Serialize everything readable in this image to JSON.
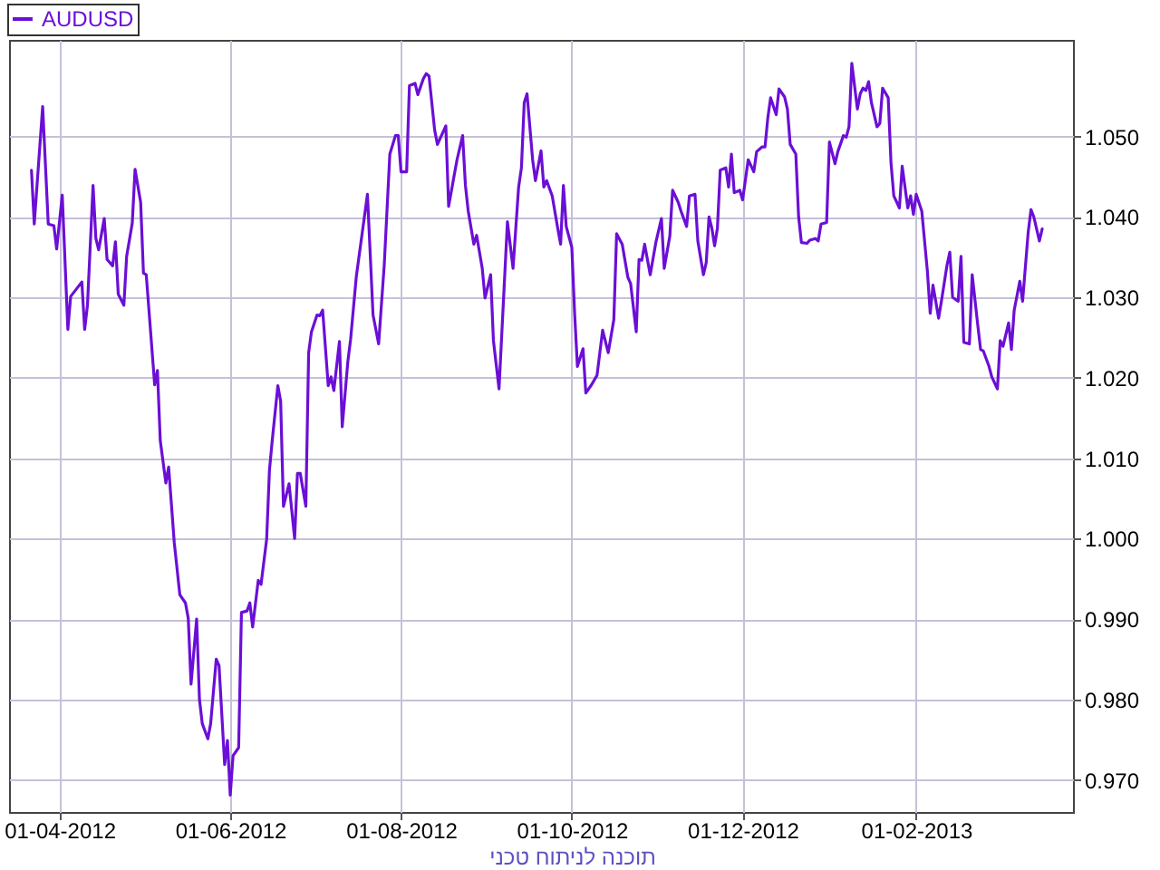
{
  "chart_data": {
    "type": "line",
    "x": [
      "2012-03-22",
      "2012-03-23",
      "2012-03-26",
      "2012-03-28",
      "2012-03-30",
      "2012-03-31",
      "2012-04-02",
      "2012-04-04",
      "2012-04-05",
      "2012-04-09",
      "2012-04-10",
      "2012-04-11",
      "2012-04-13",
      "2012-04-14",
      "2012-04-15",
      "2012-04-17",
      "2012-04-18",
      "2012-04-20",
      "2012-04-21",
      "2012-04-22",
      "2012-04-24",
      "2012-04-25",
      "2012-04-27",
      "2012-04-28",
      "2012-04-30",
      "2012-05-01",
      "2012-05-02",
      "2012-05-05",
      "2012-05-06",
      "2012-05-07",
      "2012-05-09",
      "2012-05-10",
      "2012-05-12",
      "2012-05-14",
      "2012-05-16",
      "2012-05-17",
      "2012-05-18",
      "2012-05-20",
      "2012-05-21",
      "2012-05-22",
      "2012-05-24",
      "2012-05-25",
      "2012-05-27",
      "2012-05-28",
      "2012-05-30",
      "2012-05-31",
      "2012-06-01",
      "2012-06-02",
      "2012-06-04",
      "2012-06-05",
      "2012-06-07",
      "2012-06-08",
      "2012-06-09",
      "2012-06-11",
      "2012-06-12",
      "2012-06-14",
      "2012-06-15",
      "2012-06-16",
      "2012-06-18",
      "2012-06-19",
      "2012-06-20",
      "2012-06-22",
      "2012-06-24",
      "2012-06-25",
      "2012-06-26",
      "2012-06-28",
      "2012-06-29",
      "2012-06-30",
      "2012-07-02",
      "2012-07-03",
      "2012-07-04",
      "2012-07-06",
      "2012-07-07",
      "2012-07-08",
      "2012-07-10",
      "2012-07-11",
      "2012-07-13",
      "2012-07-14",
      "2012-07-16",
      "2012-07-20",
      "2012-07-22",
      "2012-07-24",
      "2012-07-26",
      "2012-07-28",
      "2012-07-30",
      "2012-07-31",
      "2012-08-01",
      "2012-08-03",
      "2012-08-04",
      "2012-08-06",
      "2012-08-07",
      "2012-08-09",
      "2012-08-10",
      "2012-08-11",
      "2012-08-13",
      "2012-08-14",
      "2012-08-17",
      "2012-08-18",
      "2012-08-20",
      "2012-08-21",
      "2012-08-23",
      "2012-08-24",
      "2012-08-25",
      "2012-08-27",
      "2012-08-28",
      "2012-08-30",
      "2012-08-31",
      "2012-09-02",
      "2012-09-03",
      "2012-09-04",
      "2012-09-05",
      "2012-09-08",
      "2012-09-10",
      "2012-09-12",
      "2012-09-13",
      "2012-09-14",
      "2012-09-15",
      "2012-09-17",
      "2012-09-18",
      "2012-09-20",
      "2012-09-21",
      "2012-09-22",
      "2012-09-24",
      "2012-09-26",
      "2012-09-27",
      "2012-09-28",
      "2012-09-29",
      "2012-10-01",
      "2012-10-02",
      "2012-10-03",
      "2012-10-05",
      "2012-10-06",
      "2012-10-08",
      "2012-10-10",
      "2012-10-12",
      "2012-10-14",
      "2012-10-16",
      "2012-10-17",
      "2012-10-19",
      "2012-10-21",
      "2012-10-22",
      "2012-10-24",
      "2012-10-25",
      "2012-10-26",
      "2012-10-27",
      "2012-10-29",
      "2012-10-31",
      "2012-11-02",
      "2012-11-03",
      "2012-11-05",
      "2012-11-06",
      "2012-11-08",
      "2012-11-09",
      "2012-11-11",
      "2012-11-12",
      "2012-11-14",
      "2012-11-15",
      "2012-11-17",
      "2012-11-18",
      "2012-11-19",
      "2012-11-20",
      "2012-11-21",
      "2012-11-22",
      "2012-11-23",
      "2012-11-25",
      "2012-11-26",
      "2012-11-27",
      "2012-11-28",
      "2012-11-30",
      "2012-12-01",
      "2012-12-03",
      "2012-12-05",
      "2012-12-06",
      "2012-12-08",
      "2012-12-09",
      "2012-12-10",
      "2012-12-11",
      "2012-12-13",
      "2012-12-14",
      "2012-12-16",
      "2012-12-17",
      "2012-12-18",
      "2012-12-20",
      "2012-12-21",
      "2012-12-22",
      "2012-12-24",
      "2012-12-25",
      "2012-12-27",
      "2012-12-28",
      "2012-12-29",
      "2012-12-31",
      "2013-01-01",
      "2013-01-03",
      "2013-01-04",
      "2013-01-06",
      "2013-01-07",
      "2013-01-08",
      "2013-01-09",
      "2013-01-11",
      "2013-01-12",
      "2013-01-13",
      "2013-01-14",
      "2013-01-15",
      "2013-01-16",
      "2013-01-18",
      "2013-01-19",
      "2013-01-20",
      "2013-01-22",
      "2013-01-23",
      "2013-01-24",
      "2013-01-26",
      "2013-01-27",
      "2013-01-29",
      "2013-01-30",
      "2013-01-31",
      "2013-02-01",
      "2013-02-03",
      "2013-02-05",
      "2013-02-06",
      "2013-02-07",
      "2013-02-09",
      "2013-02-10",
      "2013-02-12",
      "2013-02-13",
      "2013-02-14",
      "2013-02-16",
      "2013-02-17",
      "2013-02-18",
      "2013-02-20",
      "2013-02-21",
      "2013-02-23",
      "2013-02-24",
      "2013-02-25",
      "2013-02-27",
      "2013-02-28",
      "2013-03-02",
      "2013-03-03",
      "2013-03-04",
      "2013-03-06",
      "2013-03-07",
      "2013-03-08",
      "2013-03-10",
      "2013-03-11",
      "2013-03-13",
      "2013-03-14",
      "2013-03-15",
      "2013-03-17",
      "2013-03-18"
    ],
    "series": [
      {
        "name": "AUDUSD",
        "color": "#6b0fd6",
        "values": [
          1.0458,
          1.0391,
          1.0537,
          1.0391,
          1.0389,
          1.036,
          1.0427,
          1.026,
          1.0301,
          1.0319,
          1.026,
          1.029,
          1.0439,
          1.0373,
          1.0359,
          1.0398,
          1.0347,
          1.0339,
          1.0369,
          1.0304,
          1.029,
          1.0351,
          1.0392,
          1.0459,
          1.0418,
          1.033,
          1.0328,
          1.0191,
          1.0209,
          1.0122,
          1.0069,
          1.0089,
          0.9995,
          0.993,
          0.992,
          0.9901,
          0.9819,
          0.99,
          0.98,
          0.977,
          0.9751,
          0.977,
          0.985,
          0.9842,
          0.9719,
          0.9749,
          0.9681,
          0.973,
          0.974,
          0.9908,
          0.991,
          0.992,
          0.989,
          0.9948,
          0.9943,
          0.9999,
          1.0085,
          1.0122,
          1.019,
          1.0171,
          1.004,
          1.0068,
          1.0,
          1.0081,
          1.0081,
          1.004,
          1.0231,
          1.0257,
          1.0278,
          1.0277,
          1.0284,
          1.019,
          1.0201,
          1.0184,
          1.0245,
          1.0139,
          1.022,
          1.0248,
          1.0325,
          1.0428,
          1.0278,
          1.0242,
          1.034,
          1.0478,
          1.0501,
          1.0501,
          1.0456,
          1.0456,
          1.0563,
          1.0566,
          1.0552,
          1.0572,
          1.0578,
          1.0575,
          1.0508,
          1.049,
          1.0513,
          1.0413,
          1.0452,
          1.0471,
          1.0501,
          1.0439,
          1.0407,
          1.0366,
          1.0377,
          1.0336,
          1.0299,
          1.0328,
          1.0246,
          1.0216,
          1.0186,
          1.0394,
          1.0336,
          1.0437,
          1.0461,
          1.0542,
          1.0553,
          1.0471,
          1.0445,
          1.0482,
          1.0437,
          1.0445,
          1.0426,
          1.0385,
          1.0366,
          1.0439,
          1.0388,
          1.0362,
          1.028,
          1.0214,
          1.0236,
          1.0181,
          1.0191,
          1.0203,
          1.0259,
          1.0231,
          1.0272,
          1.0379,
          1.0366,
          1.0325,
          1.0317,
          1.0257,
          1.0347,
          1.0346,
          1.0366,
          1.0328,
          1.0368,
          1.0398,
          1.0336,
          1.0376,
          1.0433,
          1.0418,
          1.0407,
          1.0388,
          1.0426,
          1.0428,
          1.037,
          1.0328,
          1.0343,
          1.04,
          1.0386,
          1.0364,
          1.0386,
          1.0458,
          1.0461,
          1.0437,
          1.0478,
          1.043,
          1.0433,
          1.0421,
          1.0471,
          1.0456,
          1.0481,
          1.0487,
          1.0487,
          1.0523,
          1.0548,
          1.0527,
          1.0559,
          1.0549,
          1.0534,
          1.049,
          1.0478,
          1.04,
          1.0368,
          1.0367,
          1.0371,
          1.0373,
          1.037,
          1.0391,
          1.0393,
          1.0493,
          1.0466,
          1.0481,
          1.0501,
          1.0499,
          1.0512,
          1.0591,
          1.0534,
          1.0553,
          1.056,
          1.0557,
          1.0568,
          1.0542,
          1.0512,
          1.0516,
          1.056,
          1.0548,
          1.0467,
          1.0426,
          1.0411,
          1.0463,
          1.0411,
          1.0426,
          1.0403,
          1.0428,
          1.0407,
          1.0332,
          1.028,
          1.0315,
          1.0274,
          1.0295,
          1.034,
          1.0356,
          1.03,
          1.0295,
          1.0351,
          1.0244,
          1.0242,
          1.0328,
          1.0265,
          1.0235,
          1.0233,
          1.0214,
          1.0201,
          1.0186,
          1.0246,
          1.0239,
          1.0268,
          1.0235,
          1.0284,
          1.032,
          1.0295,
          1.0381,
          1.0409,
          1.04,
          1.037,
          1.0385
        ]
      }
    ],
    "xlim": [
      "2012-03-14",
      "2013-03-29"
    ],
    "xticks": [
      {
        "value": "2012-04-01",
        "label": "01-04-2012"
      },
      {
        "value": "2012-06-01",
        "label": "01-06-2012"
      },
      {
        "value": "2012-08-01",
        "label": "01-08-2012"
      },
      {
        "value": "2012-10-01",
        "label": "01-10-2012"
      },
      {
        "value": "2012-12-01",
        "label": "01-12-2012"
      },
      {
        "value": "2013-02-01",
        "label": "01-02-2013"
      }
    ],
    "ylim": [
      0.966,
      1.062
    ],
    "yticks": [
      {
        "value": 0.97,
        "label": "0.970"
      },
      {
        "value": 0.98,
        "label": "0.980"
      },
      {
        "value": 0.99,
        "label": "0.990"
      },
      {
        "value": 1.0,
        "label": "1.000"
      },
      {
        "value": 1.01,
        "label": "1.010"
      },
      {
        "value": 1.02,
        "label": "1.020"
      },
      {
        "value": 1.03,
        "label": "1.030"
      },
      {
        "value": 1.04,
        "label": "1.040"
      },
      {
        "value": 1.05,
        "label": "1.050"
      }
    ],
    "grid": true,
    "legend": "top left",
    "annotations": [
      "תוכנה לניתוח טכני"
    ]
  }
}
